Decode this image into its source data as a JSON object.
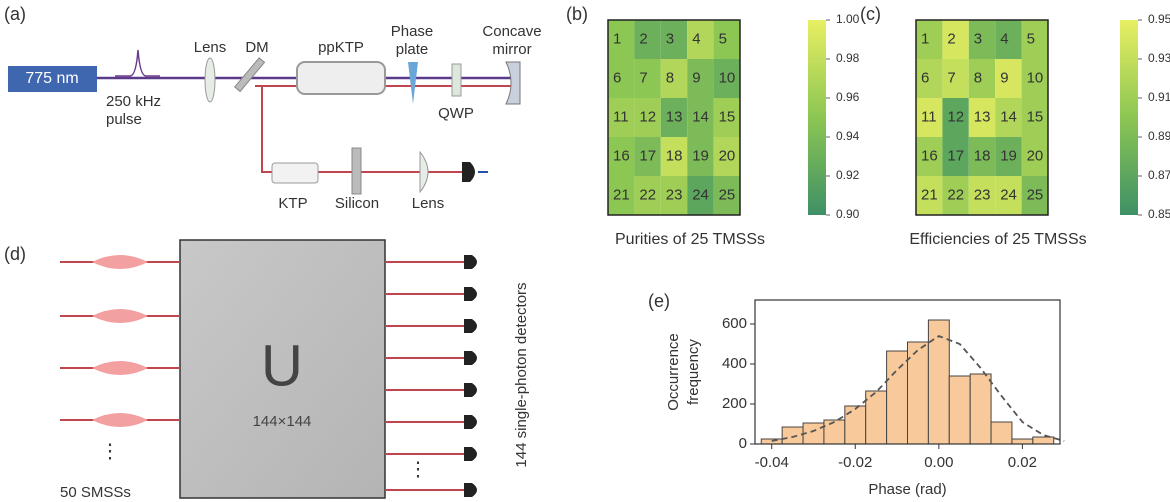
{
  "panel_labels": [
    "(a)",
    "(b)",
    "(c)",
    "(d)",
    "(e)"
  ],
  "setup": {
    "laser": "775 nm",
    "pulse": [
      "250 kHz",
      "pulse"
    ],
    "lens": "Lens",
    "dm": "DM",
    "crystal": "ppKTP",
    "phase_plate": [
      "Phase",
      "plate"
    ],
    "mirror": [
      "Concave",
      "mirror"
    ],
    "qwp": "QWP",
    "ktp": "KTP",
    "silicon": "Silicon",
    "lens2": "Lens"
  },
  "interferometer": {
    "unitary": "U",
    "size": "144×144",
    "sources": "50 SMSSs",
    "detectors": "144 single-photon detectors"
  },
  "chart_data": [
    {
      "type": "heatmap",
      "caption": "Purities of 25 TMSSs",
      "labels": [
        1,
        2,
        3,
        4,
        5,
        6,
        7,
        8,
        9,
        10,
        11,
        12,
        13,
        14,
        15,
        16,
        17,
        18,
        19,
        20,
        21,
        22,
        23,
        24,
        25
      ],
      "values": [
        0.95,
        0.93,
        0.93,
        0.97,
        0.95,
        0.95,
        0.95,
        0.97,
        0.94,
        0.93,
        0.96,
        0.96,
        0.93,
        0.94,
        0.96,
        0.95,
        0.94,
        0.98,
        0.94,
        0.97,
        0.95,
        0.96,
        0.96,
        0.92,
        0.94
      ],
      "zlim": [
        0.9,
        1.0
      ],
      "zticks": [
        {
          "value": 0.9,
          "label": "0.90"
        },
        0.92,
        0.94,
        0.96,
        0.98,
        {
          "value": 1.0,
          "label": "1.00"
        }
      ],
      "colormap": [
        "#3e9066",
        "#8cc653",
        "#e8ef62"
      ]
    },
    {
      "type": "heatmap",
      "caption": "Efficiencies of 25 TMSSs",
      "labels": [
        1,
        2,
        3,
        4,
        5,
        6,
        7,
        8,
        9,
        10,
        11,
        12,
        13,
        14,
        15,
        16,
        17,
        18,
        19,
        20,
        21,
        22,
        23,
        24,
        25
      ],
      "values": [
        0.91,
        0.94,
        0.89,
        0.88,
        0.91,
        0.92,
        0.93,
        0.91,
        0.94,
        0.91,
        0.94,
        0.87,
        0.94,
        0.92,
        0.91,
        0.91,
        0.87,
        0.89,
        0.88,
        0.91,
        0.93,
        0.91,
        0.93,
        0.93,
        0.89
      ],
      "zlim": [
        0.85,
        0.95
      ],
      "zticks": [
        0.85,
        0.87,
        0.89,
        0.91,
        0.93,
        0.95
      ],
      "colormap": [
        "#3e9066",
        "#8cc653",
        "#e8ef62"
      ]
    },
    {
      "type": "histogram",
      "xlabel": "Phase (rad)",
      "ylabel": [
        "Occurrence",
        "frequency"
      ],
      "bins": [
        -0.0425,
        -0.0375,
        -0.0325,
        -0.0275,
        -0.0225,
        -0.0175,
        -0.0125,
        -0.0075,
        -0.0025,
        0.0025,
        0.0075,
        0.0125,
        0.0175,
        0.0225,
        0.0275
      ],
      "values": [
        25,
        85,
        105,
        120,
        190,
        265,
        465,
        510,
        620,
        340,
        350,
        110,
        25,
        35
      ],
      "color": "#f8c99a",
      "fit": {
        "x": [
          -0.04,
          -0.035,
          -0.03,
          -0.025,
          -0.02,
          -0.015,
          -0.01,
          -0.005,
          0,
          0.005,
          0.01,
          0.015,
          0.02,
          0.025,
          0.03
        ],
        "values": [
          15,
          35,
          65,
          110,
          175,
          260,
          370,
          470,
          540,
          500,
          380,
          240,
          110,
          45,
          15
        ]
      },
      "xlim": [
        -0.044,
        0.029
      ],
      "ylim": [
        0,
        720
      ],
      "xticks": [
        -0.04,
        -0.02,
        {
          "value": 0,
          "label": "0.00"
        },
        0.02
      ],
      "yticks": [
        0,
        200,
        400,
        600
      ]
    }
  ]
}
